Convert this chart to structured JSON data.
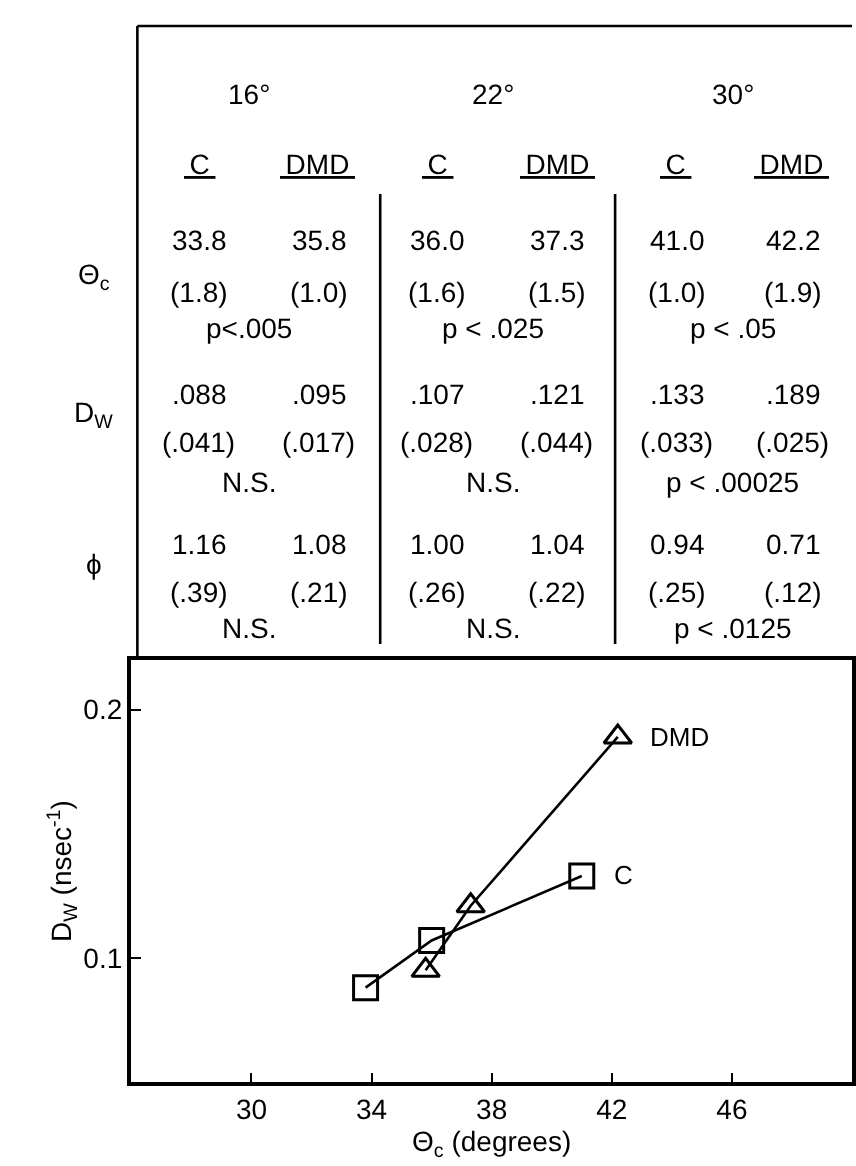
{
  "chart_data": {
    "type": "line",
    "xlabel": "Θ$_{c}$ (degrees)",
    "ylabel": "D$_{W}$ (nsec$^{-1}$)",
    "xlim": [
      26,
      50
    ],
    "xticks": [
      30,
      34,
      38,
      42,
      46
    ],
    "ylim": [
      0.05,
      0.22
    ],
    "yticks": [
      {
        "value": 0.1,
        "label": "0.1"
      },
      {
        "value": 0.2,
        "label": "0.2"
      }
    ],
    "line_style": "solid",
    "series": [
      {
        "name": "DMD",
        "color": "#000000",
        "marker": "triangle",
        "x": [
          35.8,
          37.3,
          42.2
        ],
        "values": [
          0.095,
          0.121,
          0.189
        ]
      },
      {
        "name": "C",
        "color": "#000000",
        "marker": "square",
        "x": [
          33.8,
          36.0,
          41.0
        ],
        "values": [
          0.088,
          0.107,
          0.133
        ]
      }
    ],
    "annotations": [
      "16°",
      "22°",
      "30°",
      "C",
      "DMD",
      "C",
      "DMD",
      "C",
      "DMD",
      "Θ$_{c}$",
      "33.8",
      "35.8",
      "36.0",
      "37.3",
      "41.0",
      "42.2",
      "(1.8)",
      "(1.0)",
      "(1.6)",
      "(1.5)",
      "(1.0)",
      "(1.9)",
      "p<.005",
      "p < .025",
      "p < .05",
      "D$_{W}$",
      ".088",
      ".095",
      ".107",
      ".121",
      ".133",
      ".189",
      "(.041)",
      "(.017)",
      "(.028)",
      "(.044)",
      "(.033)",
      "(.025)",
      "N.S.",
      "N.S.",
      "p < .00025",
      "ϕ",
      "1.16",
      "1.08",
      "1.00",
      "1.04",
      "0.94",
      "0.71",
      "(.39)",
      "(.21)",
      "(.26)",
      "(.22)",
      "(.25)",
      "(.12)",
      "N.S.",
      "N.S.",
      "p < .0125"
    ]
  }
}
